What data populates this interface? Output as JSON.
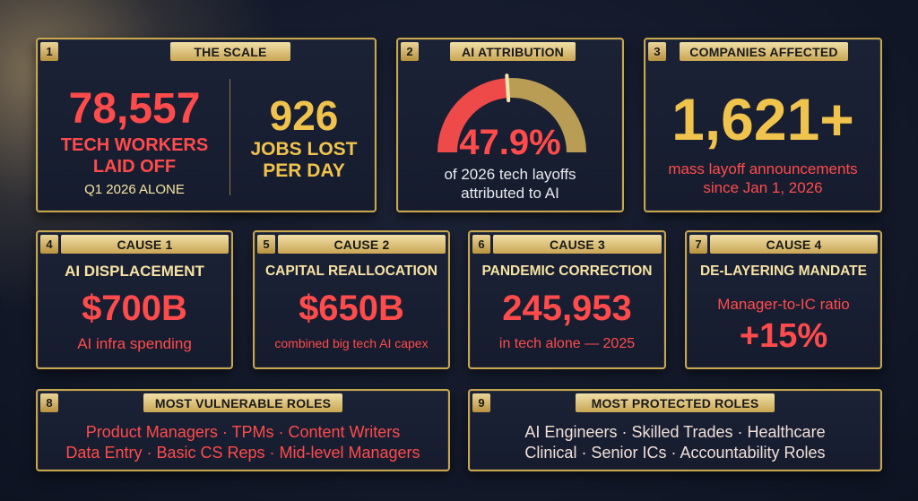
{
  "scale": {
    "number": "1",
    "tab": "THE SCALE",
    "big_value": "78,557",
    "label_line1": "TECH WORKERS",
    "label_line2": "LAID OFF",
    "sub": "Q1 2026 ALONE",
    "per_day_value": "926",
    "per_day_line1": "JOBS LOST",
    "per_day_line2": "PER DAY"
  },
  "ai_attribution": {
    "number": "2",
    "tab": "AI ATTRIBUTION",
    "value": "47.9%",
    "gauge_fraction": 0.479,
    "line1": "of 2026 tech layoffs",
    "line2": "attributed to AI",
    "gauge_fill_color": "#ef4a4a",
    "gauge_rest_color": "#b99d55"
  },
  "companies": {
    "number": "3",
    "tab": "COMPANIES AFFECTED",
    "value": "1,621+",
    "line1": "mass layoff announcements",
    "line2": "since Jan 1, 2026"
  },
  "causes": [
    {
      "number": "4",
      "tab": "CAUSE 1",
      "title": "AI DISPLACEMENT",
      "value": "$700B",
      "sub": "AI infra spending"
    },
    {
      "number": "5",
      "tab": "CAUSE 2",
      "title": "CAPITAL REALLOCATION",
      "value": "$650B",
      "sub": "combined big tech AI capex"
    },
    {
      "number": "6",
      "tab": "CAUSE 3",
      "title": "PANDEMIC CORRECTION",
      "value": "245,953",
      "sub": "in tech alone — 2025"
    },
    {
      "number": "7",
      "tab": "CAUSE 4",
      "title": "DE-LAYERING MANDATE",
      "pre": "Manager-to-IC ratio",
      "value": "+15%"
    }
  ],
  "vulnerable": {
    "number": "8",
    "tab": "MOST VULNERABLE ROLES",
    "line1": "Product Managers · TPMs · Content Writers",
    "line2": "Data Entry · Basic CS Reps · Mid-level Managers"
  },
  "protected": {
    "number": "9",
    "tab": "MOST PROTECTED ROLES",
    "line1": "AI Engineers · Skilled Trades · Healthcare",
    "line2": "Clinical · Senior ICs · Accountability Roles"
  }
}
